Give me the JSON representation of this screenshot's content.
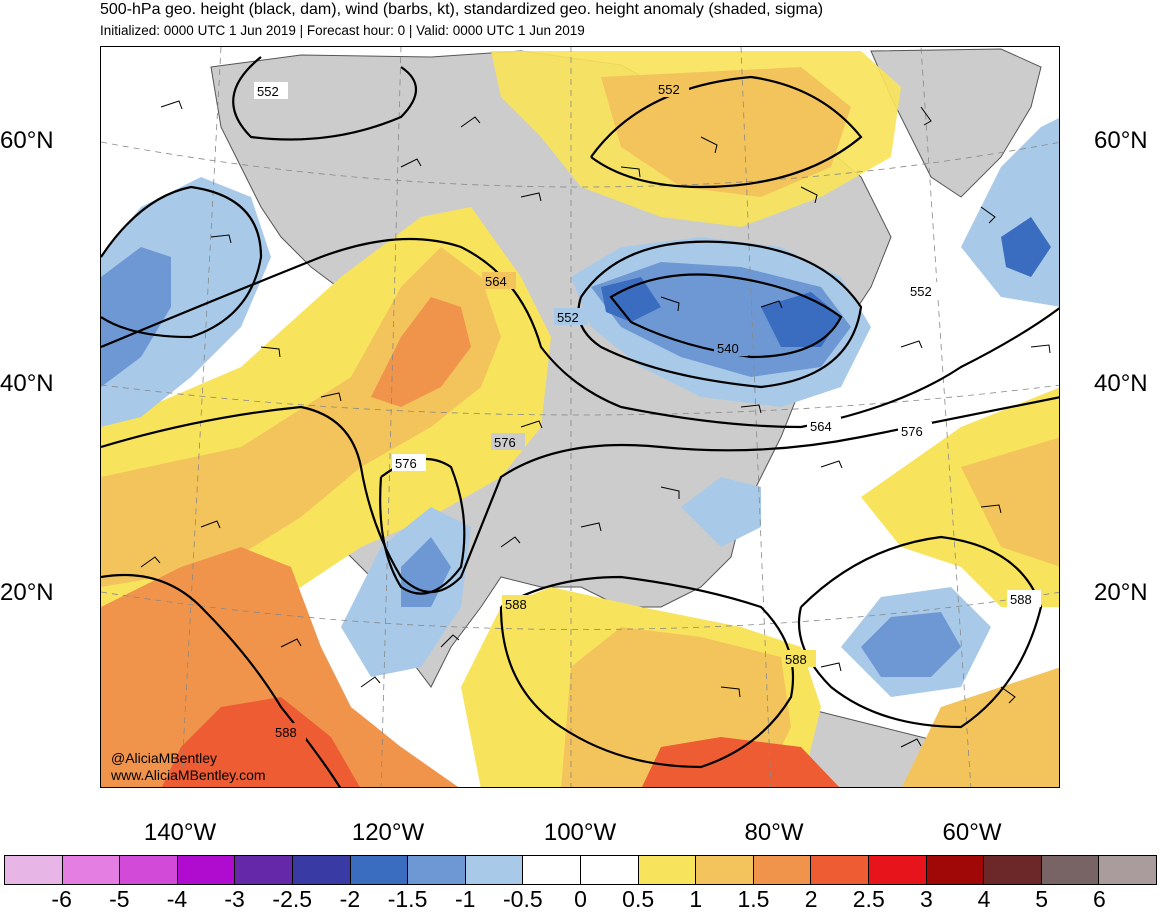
{
  "title": "500-hPa geo. height (black, dam), wind (barbs, kt), standardized geo. height anomaly (shaded, sigma)",
  "subtitle": "Initialized: 0000 UTC 1 Jun 2019 | Forecast hour: 0 | Valid: 0000 UTC 1 Jun 2019",
  "lat_labels": [
    "60°N",
    "40°N",
    "20°N"
  ],
  "lon_labels": [
    "140°W",
    "120°W",
    "100°W",
    "80°W",
    "60°W"
  ],
  "contour_labels": [
    "552",
    "552",
    "564",
    "552",
    "540",
    "552",
    "564",
    "576",
    "576",
    "576",
    "588",
    "588",
    "588",
    "588"
  ],
  "credit": {
    "handle": "@AliciaMBentley",
    "website": "www.AliciaMBentley.com"
  },
  "colorbar": {
    "colors": [
      "#e8b6e6",
      "#e47ee2",
      "#d24ad8",
      "#b00cd0",
      "#6428a8",
      "#3a3aa4",
      "#3a6cc0",
      "#6e98d4",
      "#a8cae8",
      "#ffffff",
      "#ffffff",
      "#f8e45c",
      "#f4c45c",
      "#f0944c",
      "#ee5c34",
      "#e8141c",
      "#a00808",
      "#6c2828",
      "#786464",
      "#aa9c9c"
    ],
    "tick_labels": [
      "-6",
      "-5",
      "-4",
      "-3",
      "-2.5",
      "-2",
      "-1.5",
      "-1",
      "-0.5",
      "0",
      "0.5",
      "1",
      "1.5",
      "2",
      "2.5",
      "3",
      "4",
      "5",
      "6"
    ]
  },
  "land_color": "#cccccc"
}
